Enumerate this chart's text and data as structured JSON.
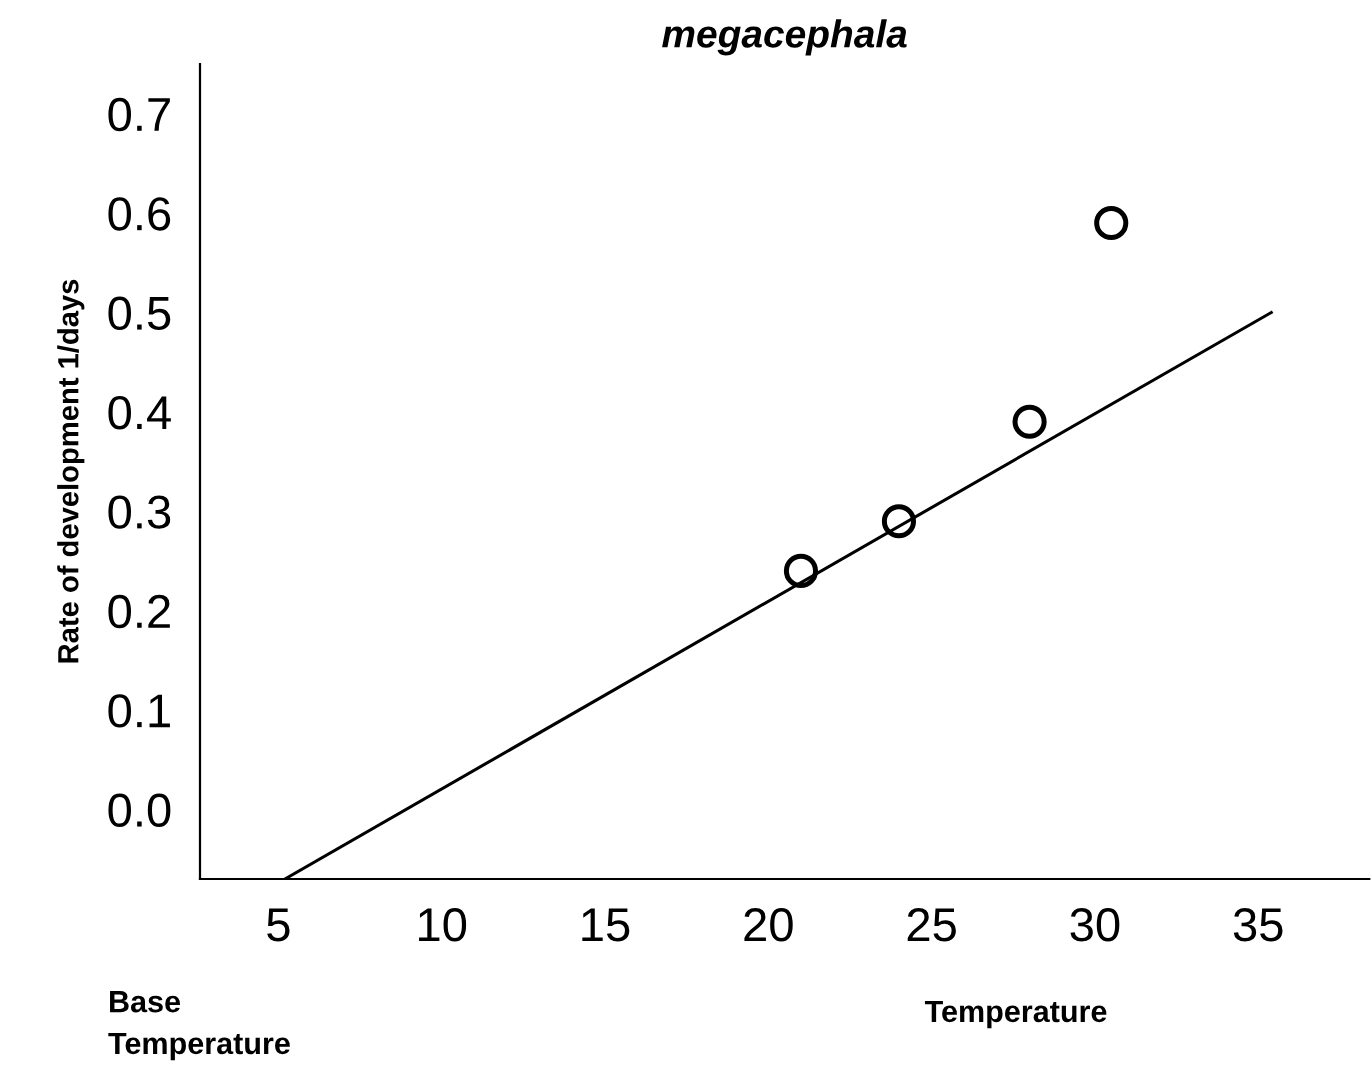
{
  "chart_data": {
    "type": "scatter",
    "title": "megacephala",
    "xlabel": "Temperature",
    "ylabel": "Rate of development 1/days",
    "annotations": [
      "Base\nTemperature"
    ],
    "xlim": [
      2.6,
      38.4
    ],
    "xticks": [
      5,
      10,
      15,
      20,
      25,
      30,
      35
    ],
    "ylim": [
      -0.07,
      0.75
    ],
    "yticks": [
      {
        "value": 0,
        "label": "0.0"
      },
      0.1,
      0.2,
      0.3,
      0.4,
      0.5,
      0.6,
      0.7
    ],
    "grid": false,
    "marker": "circle",
    "series": [
      {
        "color": "#000000",
        "x": [
          21,
          24,
          28,
          30.5
        ],
        "values": [
          0.24,
          0.29,
          0.39,
          0.59
        ]
      },
      {
        "type": "line",
        "color": "#000000",
        "line_style": "solid",
        "marker": "none",
        "x": [
          5.2,
          35.4
        ],
        "values": [
          -0.07,
          0.5
        ]
      }
    ]
  }
}
